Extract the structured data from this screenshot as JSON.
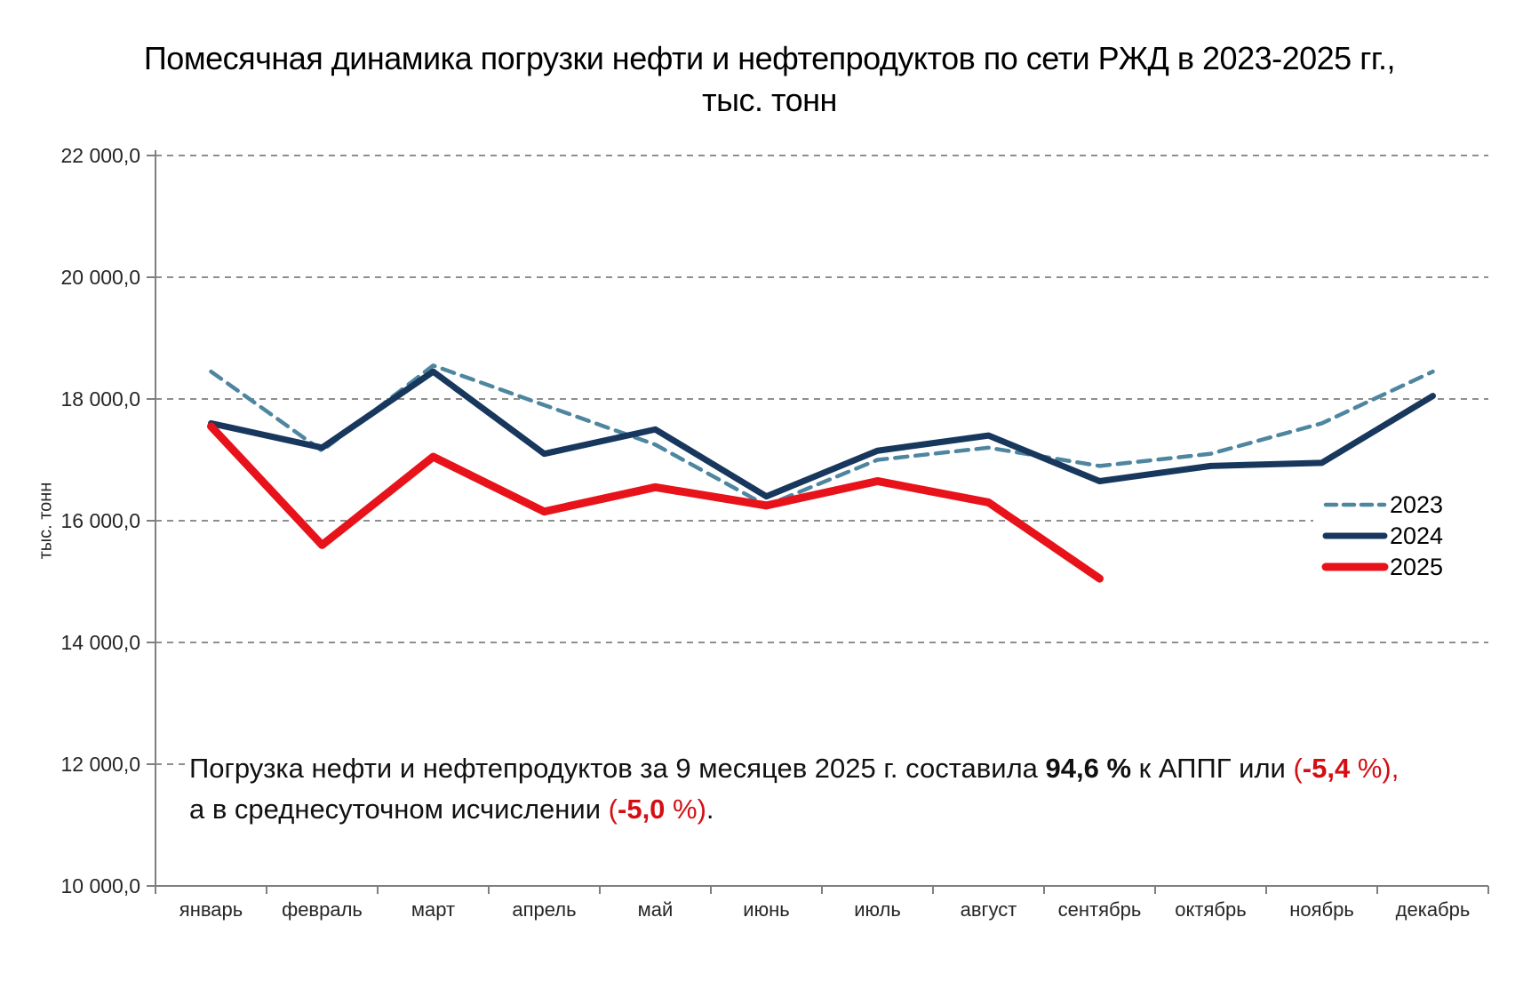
{
  "chart_data": {
    "type": "line",
    "title": "Помесячная динамика  погрузки нефти и нефтепродуктов по сети РЖД в 2023-2025 гг.,",
    "title_line2": "тыс. тонн",
    "ylabel": "тыс. тонн",
    "ylim": [
      10000,
      22000
    ],
    "y_tick_step": 2000,
    "grid": "horizontal-dashed",
    "legend_position": "right-middle",
    "y_ticks": [
      22000,
      20000,
      18000,
      16000,
      14000,
      12000,
      10000
    ],
    "y_tick_labels": [
      "22 000,0",
      "20 000,0",
      "18 000,0",
      "16 000,0",
      "14 000,0",
      "12 000,0",
      "10 000,0"
    ],
    "categories": [
      "январь",
      "февраль",
      "март",
      "апрель",
      "май",
      "июнь",
      "июль",
      "август",
      "сентябрь",
      "октябрь",
      "ноябрь",
      "декабрь"
    ],
    "series": [
      {
        "name": "2023",
        "color": "#4e86a0",
        "line": "dashed",
        "width": 4.5,
        "values": [
          18450,
          17150,
          18550,
          17900,
          17250,
          16250,
          17000,
          17200,
          16900,
          17100,
          17600,
          18450
        ]
      },
      {
        "name": "2024",
        "color": "#17375d",
        "line": "solid",
        "width": 7,
        "values": [
          17600,
          17200,
          18450,
          17100,
          17500,
          16400,
          17150,
          17400,
          16650,
          16900,
          16950,
          18050
        ]
      },
      {
        "name": "2025",
        "color": "#e8131a",
        "line": "solid",
        "width": 9,
        "values": [
          17550,
          15600,
          17050,
          16150,
          16550,
          16250,
          16650,
          16300,
          15050
        ]
      }
    ],
    "annotation": {
      "line1": [
        {
          "text": "Погрузка нефти и нефтепродуктов за 9 месяцев  2025 г. составила ",
          "style": "normal"
        },
        {
          "text": "94,6 %",
          "style": "bold"
        },
        {
          "text": " к АППГ или ",
          "style": "normal"
        },
        {
          "text": "(",
          "style": "red"
        },
        {
          "text": "-5,4",
          "style": "red-bold"
        },
        {
          "text": " %),",
          "style": "red"
        }
      ],
      "line2": [
        {
          "text": "а в среднесуточном исчислении ",
          "style": "normal"
        },
        {
          "text": "(",
          "style": "red"
        },
        {
          "text": "-5,0",
          "style": "red-bold"
        },
        {
          "text": " %)",
          "style": "red"
        },
        {
          "text": ".",
          "style": "normal"
        }
      ]
    }
  }
}
